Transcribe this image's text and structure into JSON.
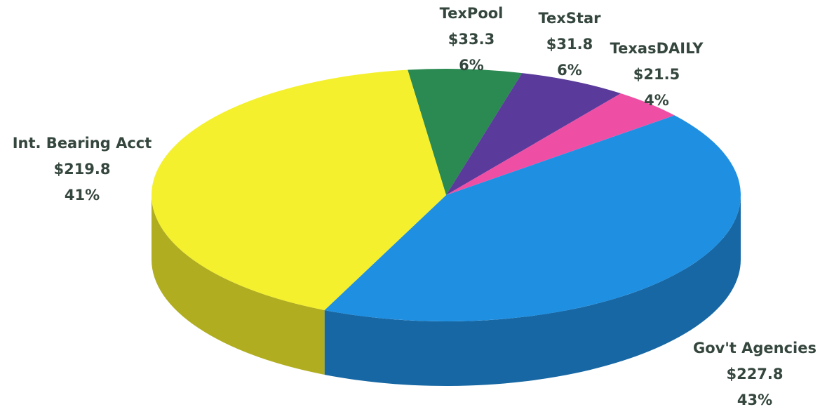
{
  "chart_data": {
    "type": "pie3d",
    "categories": [
      "TexPool",
      "TexStar",
      "TexasDAILY",
      "Gov't Agencies",
      "Int. Bearing Acct"
    ],
    "values": [
      33.3,
      31.8,
      21.5,
      227.8,
      219.8
    ],
    "value_labels": [
      "$33.3",
      "$31.8",
      "$21.5",
      "$227.8",
      "$219.8"
    ],
    "percent_labels": [
      "6%",
      "6%",
      "4%",
      "43%",
      "41%"
    ],
    "colors": [
      "#2a8a52",
      "#5a3a9a",
      "#ee4fa5",
      "#1f8fe2",
      "#f4f02e"
    ]
  }
}
